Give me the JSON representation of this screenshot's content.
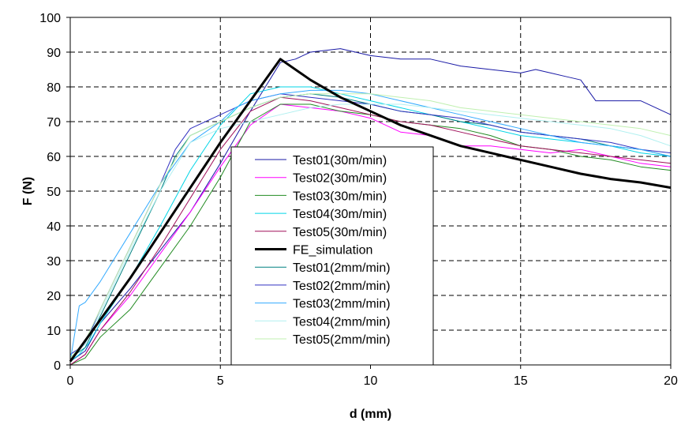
{
  "chart_data": {
    "type": "line",
    "xlabel": "d (mm)",
    "ylabel": "F (N)",
    "xlim": [
      0,
      20
    ],
    "ylim": [
      0,
      100
    ],
    "x_ticks": [
      0,
      5,
      10,
      15,
      20
    ],
    "y_ticks": [
      0,
      10,
      20,
      30,
      40,
      50,
      60,
      70,
      80,
      90,
      100
    ],
    "x_tick_labels": [
      "0",
      "5",
      "10",
      "15",
      "20"
    ],
    "y_tick_labels": [
      "0",
      "10",
      "20",
      "30",
      "40",
      "50",
      "60",
      "70",
      "80",
      "90",
      "100"
    ],
    "grid": "dashed at major ticks",
    "legend_position": "center",
    "series": [
      {
        "name": "Test01(30m/min)",
        "color": "#1a1aa6",
        "width": 1,
        "x": [
          0,
          0.5,
          1,
          2,
          3,
          4,
          5,
          6,
          6.5,
          7,
          7.5,
          8,
          9,
          9.5,
          10,
          11,
          12,
          13,
          14,
          15,
          15.5,
          16,
          16.5,
          17,
          17.5,
          18,
          19,
          20
        ],
        "y": [
          1,
          4,
          12,
          22,
          33,
          44,
          58,
          73,
          80,
          87,
          88,
          90,
          91,
          90,
          89,
          88,
          88,
          86,
          85,
          84,
          85,
          84,
          83,
          82,
          76,
          76,
          76,
          72
        ]
      },
      {
        "name": "Test02(30m/min)",
        "color": "#ff00ff",
        "width": 1,
        "x": [
          0,
          0.5,
          1,
          2,
          3,
          4,
          5,
          6,
          7,
          8,
          9,
          10,
          11,
          12,
          13,
          14,
          15,
          16,
          17,
          18,
          19,
          20
        ],
        "y": [
          0,
          3,
          10,
          20,
          32,
          44,
          57,
          69,
          75,
          74,
          73,
          71,
          67,
          66,
          63,
          63,
          62,
          61,
          62,
          60,
          58,
          57
        ]
      },
      {
        "name": "Test03(30m/min)",
        "color": "#228b22",
        "width": 1,
        "x": [
          0,
          0.5,
          1,
          2,
          3,
          4,
          5,
          5.5,
          6,
          7,
          8,
          9,
          10,
          11,
          12,
          13,
          14,
          15,
          16,
          17,
          18,
          19,
          20
        ],
        "y": [
          0,
          2,
          8,
          16,
          28,
          40,
          54,
          62,
          70,
          75,
          75,
          73,
          72,
          70,
          69,
          68,
          66,
          63,
          62,
          60,
          59,
          57,
          56
        ]
      },
      {
        "name": "Test04(30m/min)",
        "color": "#00d5e6",
        "width": 1,
        "x": [
          0,
          0.3,
          0.6,
          1,
          2,
          3,
          4,
          5,
          6,
          7,
          8,
          9,
          10,
          11,
          12,
          13,
          14,
          15,
          16,
          17,
          18,
          19,
          20
        ],
        "y": [
          1,
          3,
          6,
          12,
          25,
          40,
          56,
          69,
          78,
          80,
          80,
          78,
          76,
          74,
          72,
          70,
          68,
          66,
          65,
          64,
          63,
          61,
          60
        ]
      },
      {
        "name": "Test05(30m/min)",
        "color": "#a0105a",
        "width": 1,
        "x": [
          0,
          0.5,
          1,
          2,
          3,
          4,
          5,
          6,
          7,
          8,
          9,
          10,
          11,
          12,
          13,
          14,
          15,
          16,
          17,
          18,
          19,
          20
        ],
        "y": [
          0,
          3,
          10,
          21,
          34,
          48,
          62,
          73,
          77,
          76,
          74,
          72,
          70,
          69,
          67,
          65,
          63,
          62,
          61,
          60,
          59,
          58
        ]
      },
      {
        "name": "FE_simulation",
        "color": "#000000",
        "width": 3,
        "x": [
          0,
          1,
          2,
          3,
          4,
          5,
          6,
          7,
          8,
          9,
          10,
          11,
          12,
          13,
          14,
          15,
          16,
          17,
          18,
          19,
          20
        ],
        "y": [
          1,
          13,
          25,
          38,
          51,
          64,
          76,
          88,
          82,
          77,
          73,
          69,
          66,
          63,
          61,
          59,
          57,
          55,
          53.5,
          52.5,
          51
        ]
      },
      {
        "name": "Test01(2mm/min)",
        "color": "#008080",
        "width": 1,
        "x": [
          0,
          0.5,
          1,
          2,
          3,
          3.5,
          4,
          5,
          6,
          7,
          8,
          9,
          10,
          11,
          12,
          13,
          14,
          15,
          16,
          17,
          18,
          19,
          20
        ],
        "y": [
          2,
          5,
          14,
          32,
          50,
          60,
          66,
          70,
          74,
          77,
          78,
          77,
          75,
          73,
          72,
          70,
          69,
          67,
          66,
          65,
          63,
          62,
          60
        ]
      },
      {
        "name": "Test02(2mm/min)",
        "color": "#3030c0",
        "width": 1,
        "x": [
          0,
          0.5,
          1,
          2,
          3,
          3.5,
          4,
          5,
          6,
          7,
          8,
          9,
          10,
          11,
          12,
          13,
          14,
          15,
          16,
          17,
          18,
          19,
          20
        ],
        "y": [
          3,
          6,
          16,
          34,
          52,
          62,
          68,
          72,
          76,
          78,
          77,
          76,
          75,
          73,
          72,
          71,
          69,
          67,
          66,
          65,
          64,
          62,
          61
        ]
      },
      {
        "name": "Test03(2mm/min)",
        "color": "#33aaff",
        "width": 1,
        "x": [
          0,
          0.3,
          0.5,
          1,
          2,
          3,
          4,
          5,
          5.5,
          6,
          7,
          8,
          9,
          10,
          11,
          12,
          13,
          14,
          15,
          16,
          17,
          18,
          19,
          20
        ],
        "y": [
          1,
          17,
          18,
          24,
          38,
          52,
          64,
          70,
          74,
          76,
          78,
          79,
          79,
          78,
          76,
          74,
          72,
          70,
          68,
          66,
          64,
          63,
          62,
          60
        ]
      },
      {
        "name": "Test04(2mm/min)",
        "color": "#b0f0f0",
        "width": 1,
        "x": [
          0,
          0.5,
          1,
          2,
          3,
          4,
          5,
          6,
          7,
          8,
          9,
          10,
          11,
          12,
          13,
          14,
          15,
          16,
          17,
          18,
          19,
          20
        ],
        "y": [
          2,
          6,
          15,
          33,
          50,
          64,
          68,
          70,
          72,
          74,
          75,
          75,
          75,
          74,
          73,
          72,
          71,
          70,
          69,
          68,
          66,
          63
        ]
      },
      {
        "name": "Test05(2mm/min)",
        "color": "#c0f0b0",
        "width": 1,
        "x": [
          0,
          0.5,
          1,
          2,
          3,
          4,
          5,
          6,
          7,
          8,
          9,
          10,
          11,
          12,
          13,
          14,
          15,
          16,
          17,
          18,
          19,
          20
        ],
        "y": [
          2,
          7,
          16,
          34,
          52,
          66,
          70,
          74,
          77,
          78,
          78,
          78,
          77,
          76,
          74,
          73,
          72,
          71,
          70,
          69,
          68,
          66
        ]
      }
    ]
  }
}
